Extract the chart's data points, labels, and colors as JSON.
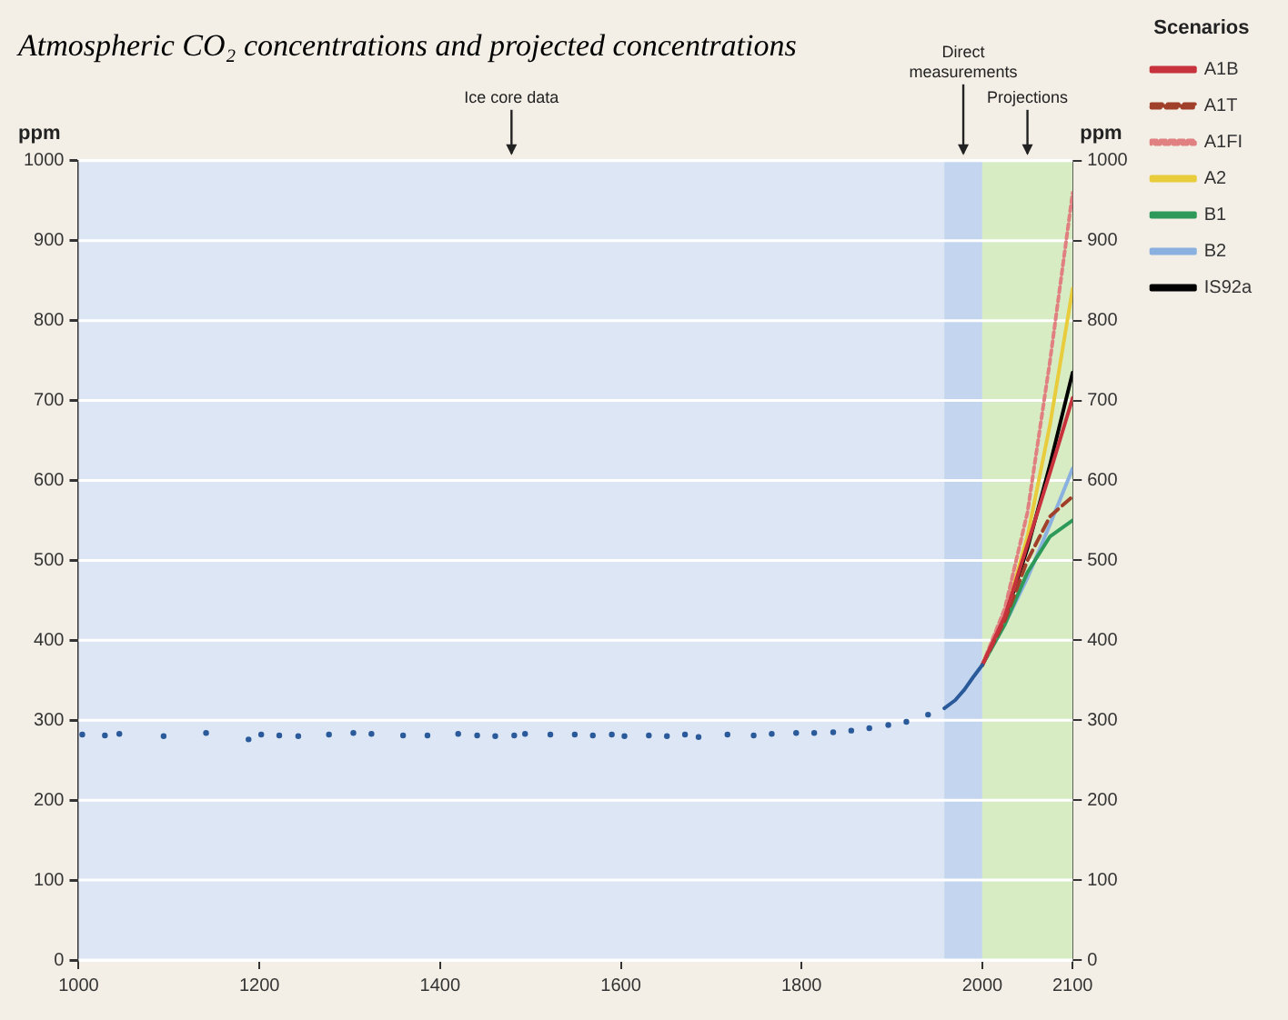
{
  "chart_data": {
    "type": "line",
    "title": "Atmospheric CO₂ concentrations and projected concentrations",
    "ylabel": "ppm",
    "y2label": "ppm",
    "legend_title": "Scenarios",
    "legend": "right",
    "grid": "y",
    "xlim": [
      1000,
      2100
    ],
    "xticks": [
      1000,
      1200,
      1400,
      1600,
      1800,
      2000,
      2100
    ],
    "ylim": [
      0,
      1000
    ],
    "yticks": [
      0,
      100,
      200,
      300,
      400,
      500,
      600,
      700,
      800,
      900,
      1000
    ],
    "y2lim": [
      0,
      1000
    ],
    "y2ticks": [
      0,
      100,
      200,
      300,
      400,
      500,
      600,
      700,
      800,
      900,
      1000
    ],
    "bands": [
      {
        "axis": "x",
        "from": 1000,
        "to": 1958,
        "label": "Ice core data",
        "color": "#dde6f5"
      },
      {
        "axis": "x",
        "from": 1958,
        "to": 2000,
        "label": "Direct measurements",
        "color": "#c4d5ef"
      },
      {
        "axis": "x",
        "from": 2000,
        "to": 2100,
        "label": "Projections",
        "color": "#d8ecc4"
      }
    ],
    "series": [
      {
        "type": "scatter",
        "marker": "circle",
        "color": "#2a5a9a",
        "x": [
          1004,
          1029,
          1045,
          1094,
          1141,
          1188,
          1202,
          1222,
          1243,
          1277,
          1304,
          1324,
          1359,
          1386,
          1420,
          1441,
          1461,
          1482,
          1494,
          1522,
          1549,
          1569,
          1590,
          1604,
          1631,
          1651,
          1671,
          1686,
          1718,
          1747,
          1767,
          1794,
          1814,
          1835,
          1855,
          1875,
          1896,
          1916,
          1940
        ],
        "values": [
          282,
          281,
          283,
          280,
          284,
          276,
          282,
          281,
          280,
          282,
          284,
          283,
          281,
          281,
          283,
          281,
          280,
          281,
          283,
          282,
          282,
          281,
          282,
          280,
          281,
          280,
          282,
          279,
          282,
          281,
          283,
          284,
          284,
          285,
          287,
          290,
          294,
          298,
          307
        ]
      },
      {
        "type": "line",
        "marker": "none",
        "line_style": "solid",
        "color": "#2a5a9a",
        "x": [
          1958,
          1970,
          1980,
          1990,
          2000
        ],
        "values": [
          315,
          325,
          338,
          354,
          369
        ]
      },
      {
        "name": "A1B",
        "line_style": "solid",
        "marker": "none",
        "color": "#c8323c",
        "x": [
          2000,
          2025,
          2050,
          2075,
          2100
        ],
        "values": [
          369,
          430,
          520,
          610,
          703
        ]
      },
      {
        "name": "A1T",
        "line_style": "dashed",
        "marker": "none",
        "color": "#a0402a",
        "x": [
          2000,
          2025,
          2050,
          2075,
          2100
        ],
        "values": [
          369,
          425,
          500,
          555,
          580
        ]
      },
      {
        "name": "A1FI",
        "line_style": "dotted",
        "marker": "none",
        "color": "#e08080",
        "x": [
          2000,
          2025,
          2050,
          2075,
          2100
        ],
        "values": [
          369,
          440,
          560,
          750,
          960
        ]
      },
      {
        "name": "A2",
        "line_style": "solid",
        "marker": "none",
        "color": "#e8cc3c",
        "x": [
          2000,
          2025,
          2050,
          2075,
          2100
        ],
        "values": [
          369,
          430,
          530,
          670,
          840
        ]
      },
      {
        "name": "B1",
        "line_style": "solid",
        "marker": "none",
        "color": "#2e9a5a",
        "x": [
          2000,
          2025,
          2050,
          2075,
          2100
        ],
        "values": [
          369,
          420,
          485,
          530,
          550
        ]
      },
      {
        "name": "B2",
        "line_style": "solid",
        "marker": "none",
        "color": "#8ab0e0",
        "x": [
          2000,
          2025,
          2050,
          2075,
          2100
        ],
        "values": [
          369,
          420,
          478,
          545,
          615
        ]
      },
      {
        "name": "IS92a",
        "line_style": "solid",
        "marker": "none",
        "color": "#000000",
        "x": [
          2000,
          2025,
          2050,
          2075,
          2100
        ],
        "values": [
          369,
          428,
          515,
          620,
          735
        ]
      }
    ]
  }
}
